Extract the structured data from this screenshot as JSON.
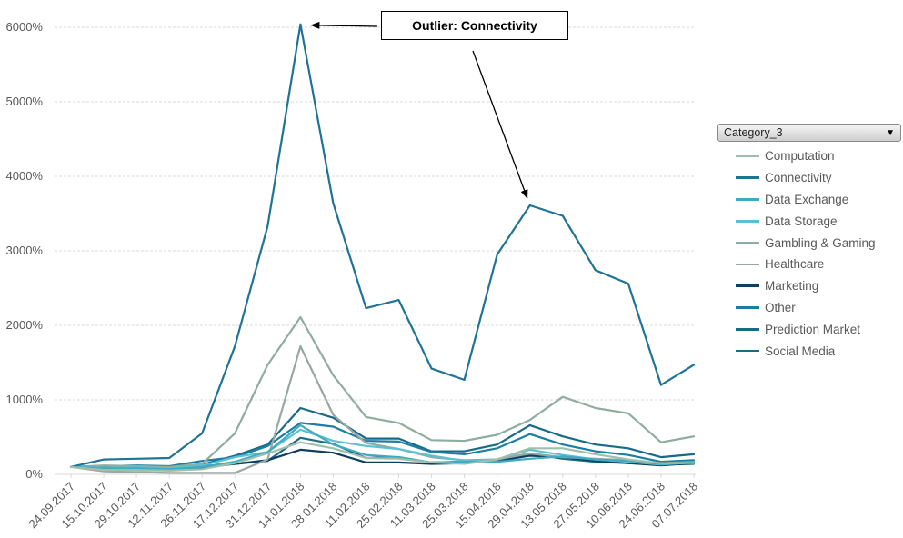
{
  "chart_data": {
    "type": "line",
    "x": [
      "24.09.2017",
      "15.10.2017",
      "29.10.2017",
      "12.11.2017",
      "26.11.2017",
      "17.12.2017",
      "31.12.2017",
      "14.01.2018",
      "28.01.2018",
      "11.02.2018",
      "25.02.2018",
      "11.03.2018",
      "25.03.2018",
      "15.04.2018",
      "29.04.2018",
      "13.05.2018",
      "27.05.2018",
      "10.06.2018",
      "24.06.2018",
      "07.07.2018"
    ],
    "y_ticks": [
      "0%",
      "1000%",
      "2000%",
      "3000%",
      "4000%",
      "5000%",
      "6000%"
    ],
    "ylim": [
      0,
      6000
    ],
    "y_unit": "%",
    "grid": "horizontal dashed",
    "legend": {
      "title": "Category_3",
      "position": "right"
    },
    "series": [
      {
        "name": "Computation",
        "color": "#9ebfae",
        "values": [
          100,
          60,
          60,
          50,
          70,
          150,
          280,
          430,
          350,
          220,
          210,
          160,
          140,
          200,
          350,
          350,
          270,
          200,
          150,
          150
        ]
      },
      {
        "name": "Connectivity",
        "color": "#1f7496",
        "values": [
          100,
          200,
          210,
          220,
          550,
          1720,
          3330,
          6040,
          3640,
          2230,
          2340,
          1420,
          1270,
          2950,
          3610,
          3470,
          2740,
          2560,
          1200,
          1470
        ]
      },
      {
        "name": "Data Exchange",
        "color": "#3faac0",
        "values": [
          100,
          80,
          80,
          70,
          100,
          170,
          300,
          660,
          400,
          260,
          230,
          160,
          170,
          170,
          210,
          240,
          200,
          180,
          140,
          160
        ]
      },
      {
        "name": "Data Storage",
        "color": "#5cc0d4",
        "values": [
          100,
          90,
          90,
          80,
          120,
          230,
          300,
          600,
          450,
          380,
          340,
          250,
          180,
          200,
          330,
          260,
          200,
          170,
          130,
          160
        ]
      },
      {
        "name": "Gambling & Gaming",
        "color": "#8fad9f",
        "values": [
          100,
          120,
          110,
          100,
          140,
          550,
          1470,
          2110,
          1330,
          770,
          690,
          460,
          450,
          530,
          730,
          1040,
          890,
          820,
          430,
          510
        ]
      },
      {
        "name": "Healthcare",
        "color": "#98a7a1",
        "values": [
          100,
          40,
          30,
          20,
          20,
          20,
          200,
          1720,
          800,
          420,
          340,
          230,
          190,
          200,
          280,
          230,
          210,
          190,
          150,
          170
        ]
      },
      {
        "name": "Marketing",
        "color": "#0e3e60",
        "values": [
          100,
          100,
          100,
          90,
          110,
          140,
          190,
          330,
          290,
          160,
          160,
          140,
          150,
          180,
          250,
          230,
          180,
          150,
          120,
          150
        ]
      },
      {
        "name": "Other",
        "color": "#1b7fa1",
        "values": [
          100,
          110,
          120,
          110,
          180,
          230,
          380,
          690,
          640,
          450,
          440,
          300,
          270,
          350,
          540,
          400,
          310,
          260,
          170,
          190
        ]
      },
      {
        "name": "Prediction Market",
        "color": "#176b89",
        "values": [
          100,
          90,
          100,
          90,
          130,
          250,
          400,
          890,
          760,
          480,
          480,
          310,
          310,
          400,
          660,
          510,
          400,
          350,
          230,
          270
        ]
      },
      {
        "name": "Social Media",
        "color": "#1d6a84",
        "values": [
          100,
          80,
          80,
          60,
          90,
          140,
          180,
          490,
          410,
          220,
          230,
          160,
          170,
          190,
          280,
          210,
          170,
          150,
          130,
          140
        ]
      }
    ],
    "annotation": {
      "text": "Outlier: Connectivity",
      "targets": [
        {
          "series": "Connectivity",
          "x": "14.01.2018",
          "y": 6040
        },
        {
          "series": "Connectivity",
          "x": "29.04.2018",
          "y": 3610
        }
      ]
    }
  }
}
